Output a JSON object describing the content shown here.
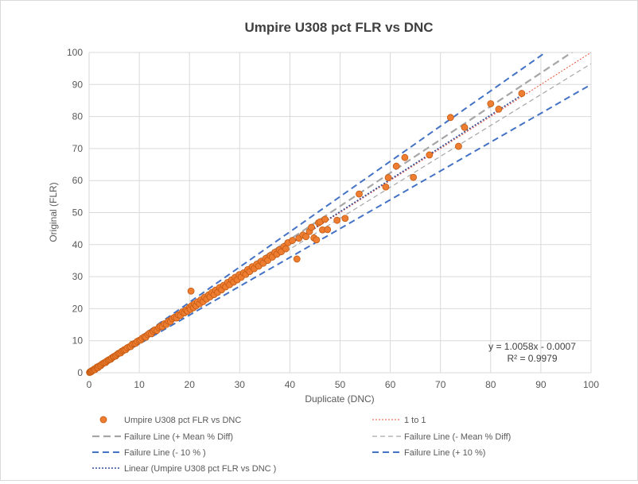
{
  "chart_data": {
    "type": "scatter",
    "title": "Umpire U308 pct FLR vs DNC",
    "xlabel": "Duplicate (DNC)",
    "ylabel": "Original (FLR)",
    "xlim": [
      0,
      100
    ],
    "ylim": [
      0,
      100
    ],
    "xticks": [
      "0",
      "10",
      "20",
      "30",
      "40",
      "50",
      "60",
      "70",
      "80",
      "90",
      "100"
    ],
    "yticks": [
      "0",
      "10",
      "20",
      "30",
      "40",
      "50",
      "60",
      "70",
      "80",
      "90",
      "100"
    ],
    "grid": true,
    "legend_position": "bottom",
    "trendline_equation": "y = 1.0058x - 0.0007",
    "r_squared": "R² = 0.9979",
    "colors": {
      "points": "#ed7d31",
      "point_border": "#c55a11",
      "one_to_one": "#e8513a",
      "mean_diff": "#a6a6a6",
      "ten_pct": "#4472c4",
      "linear": "#2f4b9a",
      "grid": "#d9d9d9"
    },
    "series": [
      {
        "name": "Umpire U308 pct FLR vs DNC",
        "kind": "scatter",
        "points": [
          [
            0.1,
            0.1
          ],
          [
            0.2,
            0.3
          ],
          [
            0.3,
            0.2
          ],
          [
            0.4,
            0.5
          ],
          [
            0.5,
            0.4
          ],
          [
            0.6,
            0.7
          ],
          [
            0.8,
            0.8
          ],
          [
            1.0,
            1.1
          ],
          [
            1.2,
            1.0
          ],
          [
            1.4,
            1.5
          ],
          [
            1.6,
            1.8
          ],
          [
            1.8,
            1.6
          ],
          [
            2.0,
            2.1
          ],
          [
            2.3,
            2.2
          ],
          [
            2.5,
            2.6
          ],
          [
            2.8,
            2.9
          ],
          [
            3.0,
            3.1
          ],
          [
            3.3,
            3.2
          ],
          [
            3.5,
            3.6
          ],
          [
            3.8,
            3.9
          ],
          [
            4.0,
            4.1
          ],
          [
            4.3,
            4.2
          ],
          [
            4.5,
            4.6
          ],
          [
            4.8,
            4.9
          ],
          [
            5.0,
            5.1
          ],
          [
            5.3,
            5.2
          ],
          [
            5.5,
            5.6
          ],
          [
            5.8,
            6.0
          ],
          [
            6.0,
            6.1
          ],
          [
            6.3,
            6.2
          ],
          [
            6.5,
            6.7
          ],
          [
            6.8,
            6.9
          ],
          [
            7.0,
            7.2
          ],
          [
            7.3,
            7.2
          ],
          [
            7.6,
            7.8
          ],
          [
            8.0,
            8.1
          ],
          [
            8.3,
            8.2
          ],
          [
            8.6,
            8.9
          ],
          [
            9.0,
            9.1
          ],
          [
            9.3,
            9.2
          ],
          [
            9.6,
            9.8
          ],
          [
            10.0,
            10.1
          ],
          [
            10.3,
            10.2
          ],
          [
            10.6,
            10.8
          ],
          [
            11.0,
            11.2
          ],
          [
            11.3,
            11.1
          ],
          [
            11.7,
            11.9
          ],
          [
            12.0,
            12.3
          ],
          [
            12.4,
            12.2
          ],
          [
            12.8,
            13.0
          ],
          [
            13.1,
            13.4
          ],
          [
            13.5,
            13.2
          ],
          [
            13.9,
            14.1
          ],
          [
            14.2,
            14.5
          ],
          [
            14.6,
            14.4
          ],
          [
            15.0,
            15.3
          ],
          [
            15.4,
            15.1
          ],
          [
            15.8,
            16.1
          ],
          [
            16.2,
            16.0
          ],
          [
            16.6,
            16.9
          ],
          [
            17.0,
            17.3
          ],
          [
            17.4,
            17.1
          ],
          [
            17.8,
            18.1
          ],
          [
            18.2,
            17.9
          ],
          [
            18.6,
            19.0
          ],
          [
            19.0,
            18.7
          ],
          [
            19.3,
            19.6
          ],
          [
            19.6,
            19.2
          ],
          [
            20.0,
            20.4
          ],
          [
            20.2,
            19.8
          ],
          [
            20.3,
            25.5
          ],
          [
            20.5,
            21.0
          ],
          [
            20.8,
            20.3
          ],
          [
            21.0,
            21.5
          ],
          [
            21.3,
            20.9
          ],
          [
            21.6,
            22.1
          ],
          [
            22.0,
            21.5
          ],
          [
            22.3,
            22.8
          ],
          [
            22.7,
            22.2
          ],
          [
            23.0,
            23.6
          ],
          [
            23.4,
            23.0
          ],
          [
            23.8,
            24.3
          ],
          [
            24.1,
            23.7
          ],
          [
            24.5,
            25.1
          ],
          [
            24.9,
            24.4
          ],
          [
            25.2,
            25.8
          ],
          [
            25.6,
            25.1
          ],
          [
            26.0,
            26.6
          ],
          [
            26.4,
            25.9
          ],
          [
            26.8,
            27.3
          ],
          [
            27.2,
            26.8
          ],
          [
            27.6,
            28.2
          ],
          [
            28.0,
            27.5
          ],
          [
            28.4,
            29.0
          ],
          [
            28.8,
            28.3
          ],
          [
            29.1,
            29.8
          ],
          [
            29.5,
            29.0
          ],
          [
            29.9,
            30.6
          ],
          [
            30.3,
            29.8
          ],
          [
            30.8,
            31.2
          ],
          [
            31.2,
            30.7
          ],
          [
            31.6,
            32.2
          ],
          [
            32.0,
            31.6
          ],
          [
            32.5,
            33.1
          ],
          [
            32.9,
            32.5
          ],
          [
            33.4,
            33.9
          ],
          [
            33.8,
            33.3
          ],
          [
            34.3,
            34.8
          ],
          [
            34.7,
            34.2
          ],
          [
            35.2,
            35.7
          ],
          [
            35.6,
            35.1
          ],
          [
            36.1,
            36.6
          ],
          [
            36.5,
            36.1
          ],
          [
            37.0,
            37.6
          ],
          [
            37.4,
            37.0
          ],
          [
            37.9,
            38.4
          ],
          [
            38.3,
            37.8
          ],
          [
            38.8,
            39.4
          ],
          [
            39.2,
            38.7
          ],
          [
            39.6,
            40.6
          ],
          [
            40.5,
            41.3
          ],
          [
            41.4,
            35.5
          ],
          [
            41.8,
            42.0
          ],
          [
            42.6,
            43.0
          ],
          [
            43.2,
            42.5
          ],
          [
            43.9,
            44.1
          ],
          [
            44.3,
            45.4
          ],
          [
            44.8,
            42.1
          ],
          [
            45.3,
            41.5
          ],
          [
            45.7,
            46.8
          ],
          [
            46.0,
            47.1
          ],
          [
            46.5,
            44.6
          ],
          [
            47.0,
            47.9
          ],
          [
            47.5,
            44.7
          ],
          [
            49.4,
            47.6
          ],
          [
            51.0,
            48.2
          ],
          [
            53.8,
            55.8
          ],
          [
            59.1,
            58.0
          ],
          [
            59.6,
            60.9
          ],
          [
            61.2,
            64.5
          ],
          [
            62.9,
            67.2
          ],
          [
            64.6,
            61.0
          ],
          [
            67.8,
            68.0
          ],
          [
            72.0,
            79.7
          ],
          [
            73.6,
            70.7
          ],
          [
            74.8,
            76.6
          ],
          [
            80.0,
            84.0
          ],
          [
            81.6,
            82.3
          ],
          [
            86.2,
            87.2
          ]
        ]
      },
      {
        "name": "1 to 1",
        "kind": "line",
        "x": [
          0,
          100
        ],
        "y": [
          0,
          100
        ]
      },
      {
        "name": "Failure Line (+ Mean % Diff)",
        "kind": "line",
        "x": [
          0,
          100
        ],
        "y": [
          0,
          104
        ]
      },
      {
        "name": "Failure Line (- Mean % Diff)",
        "kind": "line",
        "x": [
          0,
          100
        ],
        "y": [
          0,
          96.5
        ]
      },
      {
        "name": "Failure Line (- 10 % )",
        "kind": "line",
        "x": [
          0,
          100
        ],
        "y": [
          0,
          90
        ]
      },
      {
        "name": "Failure Line (+ 10 %)",
        "kind": "line",
        "x": [
          0,
          100
        ],
        "y": [
          0,
          110
        ]
      },
      {
        "name": "Linear (Umpire U308 pct FLR vs DNC )",
        "kind": "line",
        "x": [
          0,
          86.5
        ],
        "y": [
          -0.0007,
          86.9997
        ]
      }
    ]
  }
}
